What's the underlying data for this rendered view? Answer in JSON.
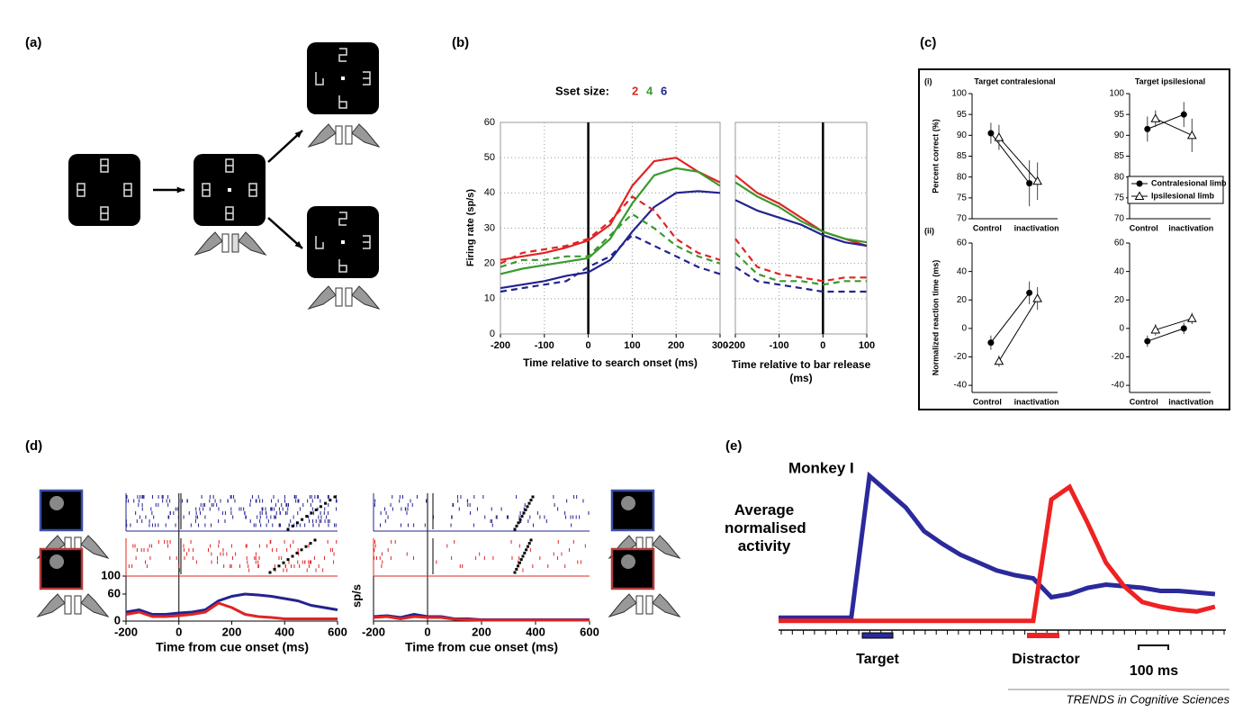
{
  "panels": [
    "(a)",
    "(b)",
    "(c)",
    "(d)",
    "(e)"
  ],
  "footer": "TRENDS in Cognitive Sciences",
  "chart_data": [
    {
      "type": "line",
      "xlabel": "Time relative to search onset (ms)",
      "ylabel": "Firing rate (sp/s)",
      "legend_title": "Sset size:",
      "x": [
        -200,
        -150,
        -100,
        -50,
        0,
        50,
        100,
        150,
        200,
        250,
        300
      ],
      "xlim": [
        -200,
        300
      ],
      "xticks": [
        -200,
        -100,
        0,
        100,
        200,
        300
      ],
      "ylim": [
        0,
        60
      ],
      "yticks": [
        0,
        10,
        20,
        30,
        40,
        50,
        60
      ],
      "grid": true,
      "series": [
        {
          "name": "2",
          "color": "#e02424",
          "values": [
            21,
            22,
            23,
            24.5,
            26.5,
            31,
            42,
            49,
            50,
            46,
            43
          ]
        },
        {
          "name": "4",
          "color": "#3a9a2e",
          "values": [
            17,
            18.5,
            19.5,
            20.5,
            21.5,
            27,
            37,
            45,
            47,
            46,
            42
          ]
        },
        {
          "name": "6",
          "color": "#23238f",
          "values": [
            13,
            14,
            15,
            16.5,
            17.5,
            21,
            29,
            36,
            40,
            40.5,
            40
          ]
        },
        {
          "color": "#e02424",
          "dashed": true,
          "values": [
            20,
            23,
            24,
            25,
            27,
            32,
            39,
            35,
            27,
            23,
            21
          ]
        },
        {
          "color": "#3a9a2e",
          "dashed": true,
          "values": [
            19,
            21,
            21,
            22,
            22,
            28,
            34,
            30,
            25,
            22,
            20
          ]
        },
        {
          "color": "#23238f",
          "dashed": true,
          "values": [
            12,
            13,
            14,
            15,
            19,
            22,
            28,
            25,
            22,
            19,
            17
          ]
        }
      ]
    },
    {
      "type": "line",
      "xlabel": "Time relative to bar release (ms)",
      "x": [
        -200,
        -150,
        -100,
        -50,
        0,
        50,
        100
      ],
      "xlim": [
        -200,
        100
      ],
      "xticks": [
        -200,
        -100,
        0,
        100
      ],
      "ylim": [
        0,
        60
      ],
      "yticks": [
        0,
        10,
        20,
        30,
        40,
        50,
        60
      ],
      "grid": true,
      "series": [
        {
          "color": "#e02424",
          "values": [
            45,
            40,
            37,
            33,
            29,
            27,
            25
          ]
        },
        {
          "color": "#3a9a2e",
          "values": [
            43,
            39,
            36,
            32,
            29,
            27,
            26
          ]
        },
        {
          "color": "#23238f",
          "values": [
            38,
            35,
            33,
            31,
            28,
            26,
            25
          ]
        },
        {
          "color": "#e02424",
          "dashed": true,
          "values": [
            27,
            19,
            17,
            16,
            15,
            16,
            16
          ]
        },
        {
          "color": "#3a9a2e",
          "dashed": true,
          "values": [
            23,
            17,
            15,
            15,
            14,
            15,
            15
          ]
        },
        {
          "color": "#23238f",
          "dashed": true,
          "values": [
            19,
            15,
            14,
            13,
            12,
            12,
            12
          ]
        }
      ]
    },
    {
      "type": "errorbar",
      "label": "(i)",
      "title": "Target contralesional",
      "ylabel": "Percent correct (%)",
      "categories": [
        "Control",
        "inactivation"
      ],
      "ylim": [
        70,
        100
      ],
      "yticks": [
        70,
        75,
        80,
        85,
        90,
        95,
        100
      ],
      "series": [
        {
          "color": "#000000",
          "marker": "circle",
          "values": [
            90.5,
            78.5
          ],
          "errors": [
            2.5,
            5.5
          ]
        },
        {
          "color": "#000000",
          "marker": "triangle-open",
          "values": [
            89.5,
            79
          ],
          "errors": [
            3,
            4.5
          ]
        }
      ]
    },
    {
      "type": "errorbar",
      "title": "Target ipsilesional",
      "categories": [
        "Control",
        "inactivation"
      ],
      "ylim": [
        70,
        100
      ],
      "yticks": [
        70,
        75,
        80,
        85,
        90,
        95,
        100
      ],
      "legend": "lower right",
      "series": [
        {
          "name": "Contralesional limb",
          "color": "#000000",
          "marker": "circle",
          "values": [
            91.5,
            95
          ],
          "errors": [
            3,
            3
          ]
        },
        {
          "name": "Ipsilesional limb",
          "color": "#000000",
          "marker": "triangle-open",
          "values": [
            94,
            90
          ],
          "errors": [
            2,
            4
          ]
        }
      ]
    },
    {
      "type": "errorbar",
      "label": "(ii)",
      "ylabel": "Normalized reaction time (ms)",
      "categories": [
        "Control",
        "inactivation"
      ],
      "ylim": [
        -45,
        60
      ],
      "yticks": [
        -40,
        -20,
        0,
        20,
        40,
        60
      ],
      "series": [
        {
          "color": "#000000",
          "marker": "circle",
          "values": [
            -10,
            25
          ],
          "errors": [
            5,
            8
          ]
        },
        {
          "color": "#000000",
          "marker": "triangle-open",
          "values": [
            -23,
            21
          ],
          "errors": [
            4,
            8
          ]
        }
      ]
    },
    {
      "type": "errorbar",
      "categories": [
        "Control",
        "inactivation"
      ],
      "ylim": [
        -45,
        60
      ],
      "yticks": [
        -40,
        -20,
        0,
        20,
        40,
        60
      ],
      "series": [
        {
          "color": "#000000",
          "marker": "circle",
          "values": [
            -9,
            0
          ],
          "errors": [
            4,
            4
          ]
        },
        {
          "color": "#000000",
          "marker": "triangle-open",
          "values": [
            -1,
            7
          ],
          "errors": [
            4,
            4
          ]
        }
      ]
    },
    {
      "type": "line",
      "xlabel": "Time from cue onset (ms)",
      "x": [
        -200,
        -150,
        -100,
        -50,
        0,
        50,
        100,
        150,
        200,
        250,
        300,
        350,
        400,
        450,
        500,
        550,
        600
      ],
      "xlim": [
        -200,
        600
      ],
      "xticks": [
        -200,
        0,
        200,
        400,
        600
      ],
      "ylim": [
        0,
        100
      ],
      "yticks": [
        0,
        60,
        100
      ],
      "series": [
        {
          "color": "#23238f",
          "values": [
            20,
            25,
            15,
            15,
            18,
            20,
            25,
            45,
            55,
            60,
            58,
            55,
            50,
            45,
            35,
            30,
            25
          ]
        },
        {
          "color": "#e02424",
          "values": [
            15,
            20,
            10,
            10,
            12,
            15,
            20,
            40,
            30,
            15,
            10,
            8,
            5,
            5,
            5,
            5,
            5
          ]
        }
      ]
    },
    {
      "type": "line",
      "xlabel": "Time from cue onset (ms)",
      "ylabel": "sp/s",
      "x": [
        -200,
        -150,
        -100,
        -50,
        0,
        50,
        100,
        150,
        200,
        250,
        300,
        350,
        400,
        450,
        500,
        550,
        600
      ],
      "xlim": [
        -200,
        600
      ],
      "xticks": [
        -200,
        0,
        200,
        400,
        600
      ],
      "ylim": [
        0,
        100
      ],
      "series": [
        {
          "color": "#23238f",
          "values": [
            10,
            12,
            8,
            15,
            10,
            10,
            5,
            5,
            3,
            3,
            3,
            3,
            3,
            3,
            3,
            3,
            3
          ]
        },
        {
          "color": "#e02424",
          "values": [
            8,
            10,
            5,
            10,
            8,
            8,
            4,
            3,
            2,
            2,
            2,
            2,
            2,
            2,
            2,
            2,
            2
          ]
        }
      ]
    },
    {
      "type": "line",
      "title": "Monkey I",
      "ylabel": "Average normalised activity",
      "annotations": [
        "Target",
        "Distractor",
        "100 ms"
      ],
      "x": [
        0,
        40,
        80,
        120,
        160,
        200,
        240,
        280,
        320,
        360,
        400,
        440,
        480,
        520,
        560,
        600,
        640,
        680,
        720,
        760,
        800,
        840,
        880,
        920,
        960
      ],
      "xlim": [
        0,
        980
      ],
      "ylim": [
        0,
        100
      ],
      "series": [
        {
          "color": "#2a2a9c",
          "values": [
            5,
            5,
            5,
            5,
            5,
            95,
            85,
            75,
            60,
            52,
            45,
            40,
            35,
            32,
            30,
            18,
            20,
            24,
            26,
            25,
            24,
            22,
            22,
            21,
            20
          ]
        },
        {
          "color": "#ee2222",
          "values": [
            3,
            3,
            3,
            3,
            3,
            3,
            3,
            3,
            3,
            3,
            3,
            3,
            3,
            3,
            3,
            80,
            88,
            65,
            40,
            25,
            15,
            12,
            10,
            9,
            12
          ]
        }
      ]
    }
  ]
}
